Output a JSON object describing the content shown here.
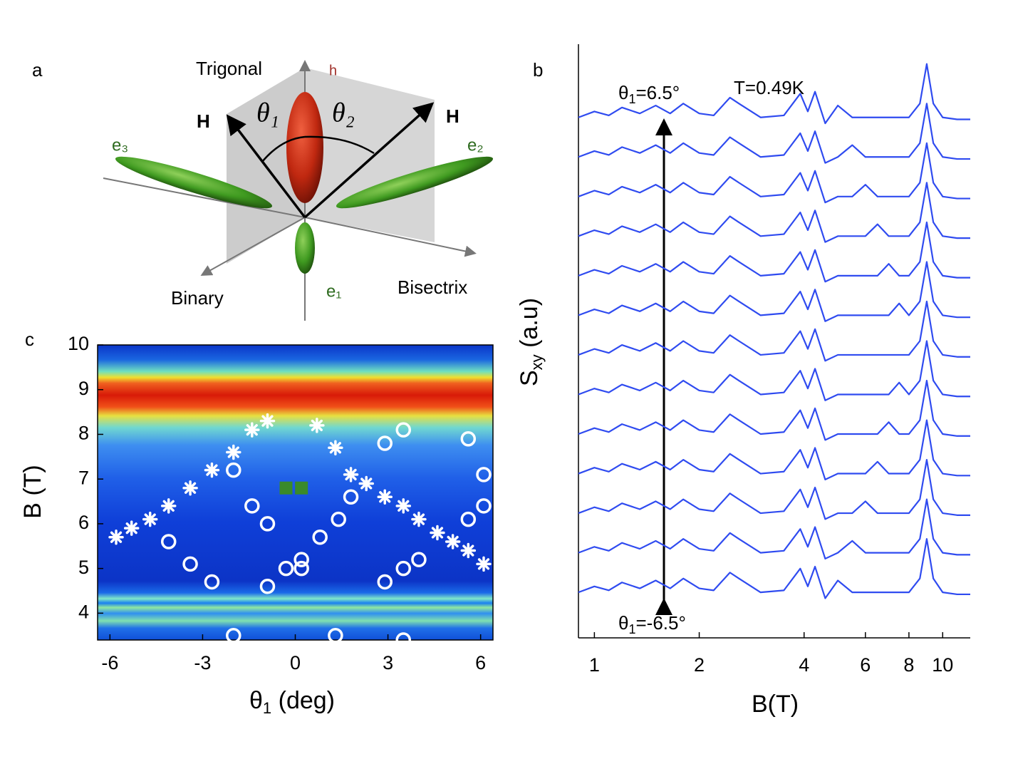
{
  "diagram": {
    "panel": "a",
    "trigonal": "Trigonal",
    "h": "h",
    "h_left": "H",
    "h_right": "H",
    "theta1": "θ₁",
    "theta2": "θ₂",
    "e3": "e₃",
    "e2": "e₂",
    "e1": "e₁",
    "binary": "Binary",
    "bisectrix": "Bisectrix"
  },
  "chart_data": [
    {
      "type": "scatter",
      "panel": "c",
      "xlabel": {
        "main": "θ",
        "sub": "1",
        "rest": " (deg)"
      },
      "ylabel": "B (T)",
      "xlim": [
        -6.4,
        6.4
      ],
      "ylim": [
        3.4,
        10
      ],
      "xticks": [
        -6,
        -3,
        0,
        3,
        6
      ],
      "yticks": [
        4,
        5,
        6,
        7,
        8,
        9,
        10
      ],
      "series": [
        {
          "marker": "star",
          "color": "#ffffff",
          "x": [
            -5.8,
            -5.3,
            -4.7,
            -4.1,
            -3.4,
            -2.7,
            -2.0,
            -1.4,
            -0.9,
            0.7,
            1.3,
            1.8,
            2.3,
            2.9,
            3.5,
            4.0,
            4.6,
            5.1,
            5.6,
            6.1
          ],
          "values": [
            5.7,
            5.9,
            6.1,
            6.4,
            6.8,
            7.2,
            7.6,
            8.1,
            8.3,
            8.2,
            7.7,
            7.1,
            6.9,
            6.6,
            6.4,
            6.1,
            5.8,
            5.6,
            5.4,
            5.1
          ]
        },
        {
          "marker": "circle",
          "color": "#ffffff",
          "x": [
            -2.0,
            -4.1,
            -3.4,
            -2.7,
            -1.4,
            -0.9,
            -0.9,
            -0.3,
            0.2,
            0.2,
            0.8,
            1.4,
            1.8,
            2.9,
            3.5,
            2.9,
            3.5,
            4.0,
            5.6,
            6.1,
            6.1,
            5.6,
            -2.0,
            1.3,
            3.5
          ],
          "values": [
            7.2,
            5.6,
            5.1,
            4.7,
            6.4,
            6.0,
            4.6,
            5.0,
            5.0,
            5.2,
            5.7,
            6.1,
            6.6,
            7.8,
            8.1,
            4.7,
            5.0,
            5.2,
            7.9,
            7.1,
            6.4,
            6.1,
            3.5,
            3.5,
            3.4
          ]
        },
        {
          "marker": "square",
          "color": "#3a8a2a",
          "x": [
            -0.3,
            0.2
          ],
          "values": [
            6.8,
            6.8
          ]
        }
      ]
    },
    {
      "type": "line",
      "panel": "b",
      "xlabel": "B(T)",
      "ylabel": {
        "main": "S",
        "sub": "xy",
        "rest": " (a.u)"
      },
      "log_x": true,
      "annotations": {
        "top": {
          "main": "θ",
          "sub": "1",
          "rest": "=6.5°"
        },
        "temp": "T=0.49K",
        "bottom": {
          "main": "θ",
          "sub": "1",
          "rest": "=-6.5°"
        }
      },
      "xlim": [
        0.9,
        12
      ],
      "ylim": [
        0,
        30
      ],
      "xticks": [
        1,
        2,
        4,
        6,
        8,
        10
      ],
      "x": [
        0.9,
        1.0,
        1.1,
        1.2,
        1.35,
        1.5,
        1.65,
        1.8,
        2.0,
        2.2,
        2.45,
        2.6,
        3.0,
        3.5,
        3.9,
        4.1,
        4.3,
        4.6,
        5.0,
        5.5,
        6.0,
        6.5,
        7.0,
        7.5,
        8.0,
        8.6,
        9.0,
        9.4,
        10,
        11,
        12
      ],
      "series": [
        {
          "color": "#2f4bf0",
          "values": [
            2.3,
            2.6,
            2.4,
            2.8,
            2.5,
            2.9,
            2.5,
            3,
            2.5,
            2.4,
            3.3,
            3,
            2.3,
            2.4,
            3.5,
            2.6,
            3.6,
            2,
            2.9,
            2.3,
            2.3,
            2.3,
            2.3,
            2.3,
            2.3,
            3,
            5,
            3,
            2.3,
            2.2,
            2.2
          ]
        },
        {
          "color": "#2f4bf0",
          "values": [
            4.3,
            4.6,
            4.4,
            4.8,
            4.5,
            4.9,
            4.5,
            5,
            4.5,
            4.4,
            5.3,
            5,
            4.3,
            4.4,
            5.5,
            4.6,
            5.6,
            4,
            4.3,
            4.9,
            4.3,
            4.3,
            4.3,
            4.3,
            4.3,
            5,
            7,
            5,
            4.3,
            4.2,
            4.2
          ]
        },
        {
          "color": "#2f4bf0",
          "values": [
            6.3,
            6.6,
            6.4,
            6.8,
            6.5,
            6.9,
            6.5,
            7,
            6.5,
            6.4,
            7.3,
            7,
            6.3,
            6.4,
            7.5,
            6.6,
            7.6,
            6,
            6.3,
            6.3,
            6.9,
            6.3,
            6.3,
            6.3,
            6.3,
            7,
            9,
            7,
            6.3,
            6.2,
            6.2
          ]
        },
        {
          "color": "#2f4bf0",
          "values": [
            8.3,
            8.6,
            8.4,
            8.8,
            8.5,
            8.9,
            8.5,
            9,
            8.5,
            8.4,
            9.3,
            9,
            8.3,
            8.4,
            9.5,
            8.6,
            9.6,
            8,
            8.3,
            8.3,
            8.3,
            8.9,
            8.3,
            8.3,
            8.3,
            9,
            11,
            9,
            8.3,
            8.2,
            8.2
          ]
        },
        {
          "color": "#2f4bf0",
          "values": [
            10.3,
            10.6,
            10.4,
            10.8,
            10.5,
            10.9,
            10.5,
            11,
            10.5,
            10.4,
            11.3,
            11,
            10.3,
            10.4,
            11.5,
            10.6,
            11.6,
            10,
            10.3,
            10.3,
            10.3,
            10.3,
            10.9,
            10.3,
            10.3,
            11,
            13,
            11,
            10.3,
            10.2,
            10.2
          ]
        },
        {
          "color": "#2f4bf0",
          "values": [
            12.3,
            12.6,
            12.4,
            12.8,
            12.5,
            12.9,
            12.5,
            13,
            12.5,
            12.4,
            13.3,
            13,
            12.3,
            12.4,
            13.5,
            12.6,
            13.6,
            12,
            12.3,
            12.3,
            12.3,
            12.3,
            12.3,
            12.9,
            12.3,
            13,
            15,
            13,
            12.3,
            12.2,
            12.2
          ]
        },
        {
          "color": "#2f4bf0",
          "values": [
            14.3,
            14.6,
            14.4,
            14.8,
            14.5,
            14.9,
            14.5,
            15,
            14.5,
            14.4,
            15.3,
            15,
            14.3,
            14.4,
            15.5,
            14.6,
            15.6,
            14,
            14.3,
            14.3,
            14.3,
            14.3,
            14.3,
            14.3,
            14.3,
            15,
            17,
            15,
            14.3,
            14.2,
            14.2
          ]
        },
        {
          "color": "#2f4bf0",
          "values": [
            16.3,
            16.6,
            16.4,
            16.8,
            16.5,
            16.9,
            16.5,
            17,
            16.5,
            16.4,
            17.3,
            17,
            16.3,
            16.4,
            17.5,
            16.6,
            17.6,
            16,
            16.3,
            16.3,
            16.3,
            16.3,
            16.3,
            16.9,
            16.3,
            17,
            19,
            17,
            16.3,
            16.2,
            16.2
          ]
        },
        {
          "color": "#2f4bf0",
          "values": [
            18.3,
            18.6,
            18.4,
            18.8,
            18.5,
            18.9,
            18.5,
            19,
            18.5,
            18.4,
            19.3,
            19,
            18.3,
            18.4,
            19.5,
            18.6,
            19.6,
            18,
            18.3,
            18.3,
            18.3,
            18.3,
            18.9,
            18.3,
            18.3,
            19,
            21,
            19,
            18.3,
            18.2,
            18.2
          ]
        },
        {
          "color": "#2f4bf0",
          "values": [
            20.3,
            20.6,
            20.4,
            20.8,
            20.5,
            20.9,
            20.5,
            21,
            20.5,
            20.4,
            21.3,
            21,
            20.3,
            20.4,
            21.5,
            20.6,
            21.6,
            20,
            20.3,
            20.3,
            20.3,
            20.9,
            20.3,
            20.3,
            20.3,
            21,
            23,
            21,
            20.3,
            20.2,
            20.2
          ]
        },
        {
          "color": "#2f4bf0",
          "values": [
            22.3,
            22.6,
            22.4,
            22.8,
            22.5,
            22.9,
            22.5,
            23,
            22.5,
            22.4,
            23.3,
            23,
            22.3,
            22.4,
            23.5,
            22.6,
            23.6,
            22,
            22.3,
            22.3,
            22.9,
            22.3,
            22.3,
            22.3,
            22.3,
            23,
            25,
            23,
            22.3,
            22.2,
            22.2
          ]
        },
        {
          "color": "#2f4bf0",
          "values": [
            24.3,
            24.6,
            24.4,
            24.8,
            24.5,
            24.9,
            24.5,
            25,
            24.5,
            24.4,
            25.3,
            25,
            24.3,
            24.4,
            25.5,
            24.6,
            25.6,
            24,
            24.3,
            24.9,
            24.3,
            24.3,
            24.3,
            24.3,
            24.3,
            25,
            27,
            25,
            24.3,
            24.2,
            24.2
          ]
        },
        {
          "color": "#2f4bf0",
          "values": [
            26.3,
            26.6,
            26.4,
            26.8,
            26.5,
            26.9,
            26.5,
            27,
            26.5,
            26.4,
            27.3,
            27,
            26.3,
            26.4,
            27.5,
            26.6,
            27.6,
            26,
            26.9,
            26.3,
            26.3,
            26.3,
            26.3,
            26.3,
            26.3,
            27,
            29,
            27,
            26.3,
            26.2,
            26.2
          ]
        }
      ]
    }
  ]
}
